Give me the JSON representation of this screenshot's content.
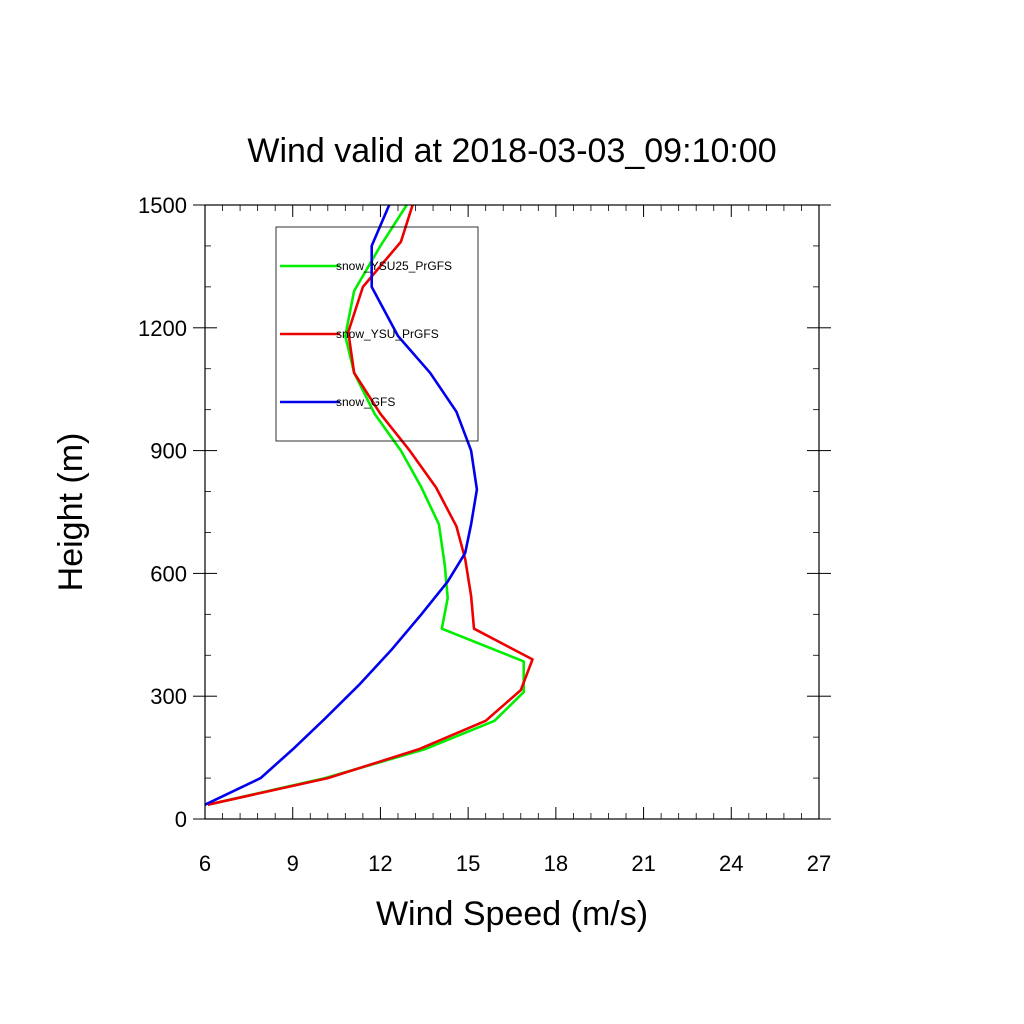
{
  "chart_data": {
    "type": "line",
    "title": "Wind valid at 2018-03-03_09:10:00",
    "xlabel": "Wind Speed (m/s)",
    "ylabel": "Height (m)",
    "xlim": [
      6,
      27
    ],
    "ylim": [
      0,
      1500
    ],
    "xticks": [
      6,
      9,
      12,
      15,
      18,
      21,
      24,
      27
    ],
    "yticks": [
      0,
      300,
      600,
      900,
      1200,
      1500
    ],
    "legend_position": "top-left",
    "grid": false,
    "series": [
      {
        "name": "snow_YSU25_PrGFS",
        "color": "#00ee00",
        "points": [
          [
            6.1,
            35
          ],
          [
            10.1,
            100
          ],
          [
            13.5,
            170
          ],
          [
            15.9,
            240
          ],
          [
            16.9,
            310
          ],
          [
            16.9,
            385
          ],
          [
            14.1,
            465
          ],
          [
            14.3,
            540
          ],
          [
            14.2,
            620
          ],
          [
            14.0,
            720
          ],
          [
            13.4,
            810
          ],
          [
            12.7,
            900
          ],
          [
            11.8,
            990
          ],
          [
            11.1,
            1090
          ],
          [
            10.8,
            1180
          ],
          [
            11.1,
            1290
          ],
          [
            12.0,
            1400
          ],
          [
            12.9,
            1500
          ]
        ]
      },
      {
        "name": "snow_YSU_PrGFS",
        "color": "#ee0000",
        "points": [
          [
            6.1,
            35
          ],
          [
            10.2,
            100
          ],
          [
            13.3,
            170
          ],
          [
            15.6,
            240
          ],
          [
            16.8,
            315
          ],
          [
            17.2,
            390
          ],
          [
            15.2,
            465
          ],
          [
            15.1,
            545
          ],
          [
            14.9,
            635
          ],
          [
            14.6,
            715
          ],
          [
            13.9,
            810
          ],
          [
            13.0,
            900
          ],
          [
            12.0,
            990
          ],
          [
            11.1,
            1090
          ],
          [
            10.9,
            1190
          ],
          [
            11.4,
            1300
          ],
          [
            12.7,
            1410
          ],
          [
            13.1,
            1500
          ]
        ]
      },
      {
        "name": "snow_GFS",
        "color": "#0000ee",
        "points": [
          [
            6.0,
            35
          ],
          [
            7.9,
            100
          ],
          [
            9.0,
            170
          ],
          [
            10.1,
            245
          ],
          [
            11.3,
            330
          ],
          [
            12.4,
            415
          ],
          [
            13.4,
            500
          ],
          [
            14.3,
            580
          ],
          [
            14.9,
            650
          ],
          [
            15.1,
            720
          ],
          [
            15.3,
            805
          ],
          [
            15.1,
            900
          ],
          [
            14.6,
            995
          ],
          [
            13.7,
            1090
          ],
          [
            12.6,
            1180
          ],
          [
            11.7,
            1300
          ],
          [
            11.7,
            1400
          ],
          [
            12.3,
            1500
          ]
        ]
      }
    ]
  }
}
